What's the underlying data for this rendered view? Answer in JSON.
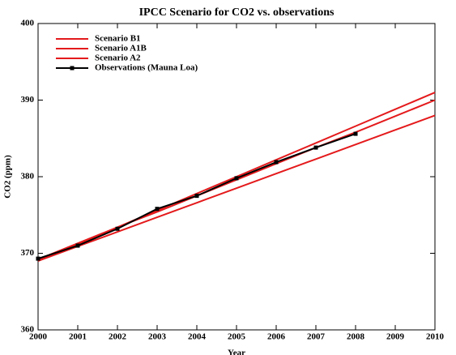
{
  "chart_data": {
    "type": "line",
    "title": "IPCC Scenario for CO2 vs. observations",
    "xlabel": "Year",
    "ylabel": "CO2 (ppm)",
    "x": [
      2000,
      2001,
      2002,
      2003,
      2004,
      2005,
      2006,
      2007,
      2008,
      2009,
      2010
    ],
    "series": [
      {
        "name": "Scenario B1",
        "color": "#e41a1c",
        "values": [
          369.0,
          370.9,
          372.8,
          374.7,
          376.6,
          378.5,
          380.4,
          382.3,
          384.2,
          386.1,
          388.0
        ]
      },
      {
        "name": "Scenario A1B",
        "color": "#e41a1c",
        "values": [
          369.2,
          371.3,
          373.4,
          375.4,
          377.5,
          379.6,
          381.7,
          383.8,
          385.8,
          387.9,
          390.0
        ]
      },
      {
        "name": "Scenario A2",
        "color": "#e41a1c",
        "values": [
          369.0,
          371.2,
          373.4,
          375.6,
          377.8,
          380.0,
          382.2,
          384.4,
          386.6,
          388.8,
          391.0
        ]
      },
      {
        "name": "Observations (Mauna Loa)",
        "color": "#000000",
        "markers": true,
        "values": [
          369.3,
          371.0,
          373.2,
          375.8,
          377.5,
          379.8,
          381.9,
          383.8,
          385.6,
          null,
          null
        ]
      }
    ],
    "xlim": [
      2000,
      2010
    ],
    "xticks": [
      2000,
      2001,
      2002,
      2003,
      2004,
      2005,
      2006,
      2007,
      2008,
      2009,
      2010
    ],
    "ylim": [
      360,
      400
    ],
    "yticks": [
      360,
      370,
      380,
      390,
      400
    ],
    "legend": "top-left"
  }
}
